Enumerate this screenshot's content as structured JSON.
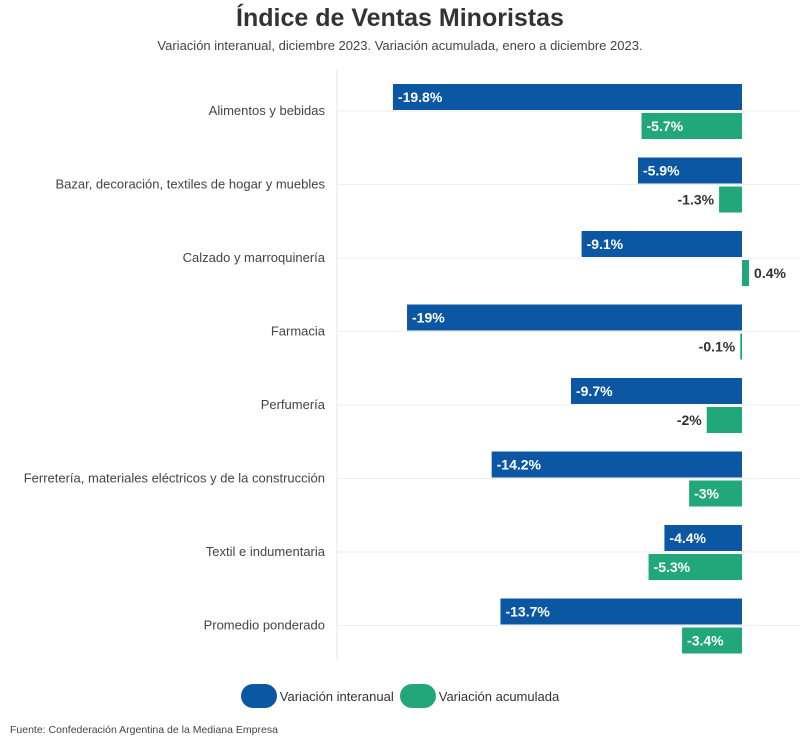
{
  "chart_data": {
    "type": "bar",
    "orientation": "horizontal",
    "title": "Índice de Ventas Minoristas",
    "subtitle": "Variación interanual, diciembre 2023. Variación acumulada, enero a diciembre 2023.",
    "categories": [
      "Alimentos y bebidas",
      "Bazar, decoración, textiles de hogar y muebles",
      "Calzado y marroquinería",
      "Farmacia",
      "Perfumería",
      "Ferretería, materiales eléctricos y de la construcción",
      "Textil e indumentaria",
      "Promedio ponderado"
    ],
    "series": [
      {
        "name": "Variación interanual",
        "color": "#0b57a4",
        "values": [
          -19.8,
          -5.9,
          -9.1,
          -19,
          -9.7,
          -14.2,
          -4.4,
          -13.7
        ],
        "labels": [
          "-19.8%",
          "-5.9%",
          "-9.1%",
          "-19%",
          "-9.7%",
          "-14.2%",
          "-4.4%",
          "-13.7%"
        ]
      },
      {
        "name": "Variación acumulada",
        "color": "#22a77a",
        "values": [
          -5.7,
          -1.3,
          0.4,
          -0.1,
          -2,
          -3,
          -5.3,
          -3.4
        ],
        "labels": [
          "-5.7%",
          "-1.3%",
          "0.4%",
          "-0.1%",
          "-2%",
          "-3%",
          "-5.3%",
          "-3.4%"
        ]
      }
    ],
    "xlim": [
      -20.3,
      3.3
    ],
    "grid": true,
    "legend_position": "bottom"
  },
  "source": "Fuente: Confederación Argentina de la Mediana Empresa"
}
